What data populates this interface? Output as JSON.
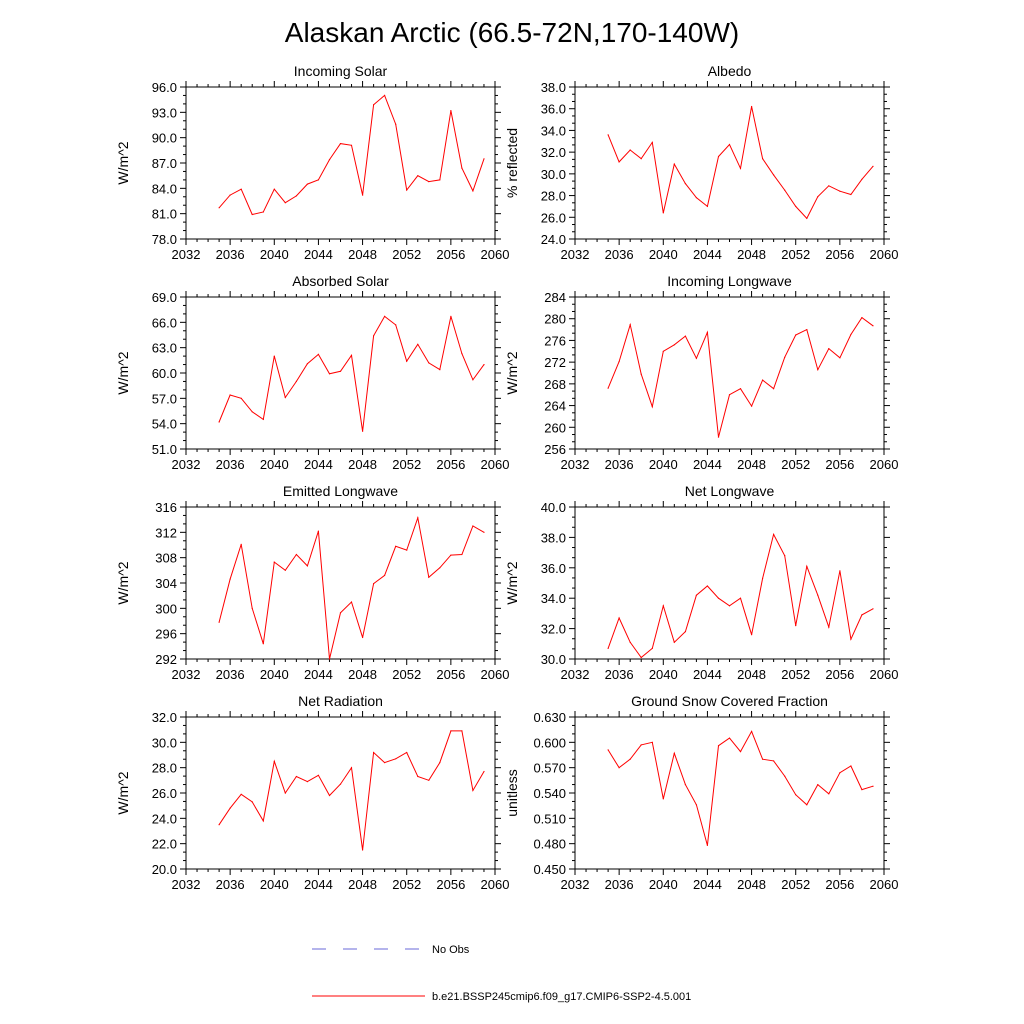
{
  "title": "Alaskan Arctic (66.5-72N,170-140W)",
  "legend": {
    "position": "bottom-center",
    "entries": [
      {
        "label": "No Obs",
        "color": "#6a6ad8",
        "style": "dashed"
      },
      {
        "label": "b.e21.BSSP245cmip6.f09_g17.CMIP6-SSP2-4.5.001",
        "color": "#ff0000",
        "style": "solid"
      }
    ]
  },
  "chart_data": [
    {
      "type": "line",
      "title": "Incoming Solar",
      "xlabel": "",
      "ylabel": "W/m^2",
      "xlim": [
        2032,
        2060
      ],
      "ylim": [
        78,
        96
      ],
      "xticks": [
        "2032",
        "2036",
        "2040",
        "2044",
        "2048",
        "2052",
        "2056",
        "2060"
      ],
      "yticks": [
        "78.0",
        "81.0",
        "84.0",
        "87.0",
        "90.0",
        "93.0",
        "96.0"
      ],
      "x": [
        2035,
        2036,
        2037,
        2038,
        2039,
        2040,
        2041,
        2042,
        2043,
        2044,
        2045,
        2046,
        2047,
        2048,
        2049,
        2050,
        2051,
        2052,
        2053,
        2054,
        2055,
        2056,
        2057,
        2058,
        2059
      ],
      "series": [
        {
          "color": "#ff0000",
          "values": [
            81.7,
            83.2,
            83.9,
            80.9,
            81.2,
            83.9,
            82.3,
            83.1,
            84.5,
            85.0,
            87.4,
            89.3,
            89.1,
            83.2,
            93.9,
            95.0,
            91.6,
            83.8,
            85.5,
            84.8,
            85.0,
            93.2,
            86.4,
            83.7,
            87.5
          ]
        }
      ]
    },
    {
      "type": "line",
      "title": "Albedo",
      "xlabel": "",
      "ylabel": "% reflected",
      "xlim": [
        2032,
        2060
      ],
      "ylim": [
        24,
        38
      ],
      "xticks": [
        "2032",
        "2036",
        "2040",
        "2044",
        "2048",
        "2052",
        "2056",
        "2060"
      ],
      "yticks": [
        "24.0",
        "26.0",
        "28.0",
        "30.0",
        "32.0",
        "34.0",
        "36.0",
        "38.0"
      ],
      "x": [
        2035,
        2036,
        2037,
        2038,
        2039,
        2040,
        2041,
        2042,
        2043,
        2044,
        2045,
        2046,
        2047,
        2048,
        2049,
        2050,
        2051,
        2052,
        2053,
        2054,
        2055,
        2056,
        2057,
        2058,
        2059
      ],
      "series": [
        {
          "color": "#ff0000",
          "values": [
            33.6,
            31.1,
            32.2,
            31.4,
            32.9,
            26.4,
            30.9,
            29.1,
            27.8,
            27.0,
            31.6,
            32.7,
            30.5,
            36.2,
            31.4,
            29.9,
            28.5,
            27.0,
            25.9,
            27.9,
            28.9,
            28.4,
            28.1,
            29.5,
            30.7
          ]
        }
      ]
    },
    {
      "type": "line",
      "title": "Absorbed Solar",
      "xlabel": "",
      "ylabel": "W/m^2",
      "xlim": [
        2032,
        2060
      ],
      "ylim": [
        51,
        69
      ],
      "xticks": [
        "2032",
        "2036",
        "2040",
        "2044",
        "2048",
        "2052",
        "2056",
        "2060"
      ],
      "yticks": [
        "51.0",
        "54.0",
        "57.0",
        "60.0",
        "63.0",
        "66.0",
        "69.0"
      ],
      "x": [
        2035,
        2036,
        2037,
        2038,
        2039,
        2040,
        2041,
        2042,
        2043,
        2044,
        2045,
        2046,
        2047,
        2048,
        2049,
        2050,
        2051,
        2052,
        2053,
        2054,
        2055,
        2056,
        2057,
        2058,
        2059
      ],
      "series": [
        {
          "color": "#ff0000",
          "values": [
            54.2,
            57.4,
            57.0,
            55.4,
            54.5,
            62.0,
            57.1,
            59.0,
            61.1,
            62.2,
            59.9,
            60.2,
            62.1,
            53.1,
            64.4,
            66.7,
            65.7,
            61.4,
            63.4,
            61.2,
            60.4,
            66.7,
            62.3,
            59.2,
            61.0
          ]
        }
      ]
    },
    {
      "type": "line",
      "title": "Incoming Longwave",
      "xlabel": "",
      "ylabel": "W/m^2",
      "xlim": [
        2032,
        2060
      ],
      "ylim": [
        256,
        284
      ],
      "xticks": [
        "2032",
        "2036",
        "2040",
        "2044",
        "2048",
        "2052",
        "2056",
        "2060"
      ],
      "yticks": [
        "256",
        "260",
        "264",
        "268",
        "272",
        "276",
        "280",
        "284"
      ],
      "x": [
        2035,
        2036,
        2037,
        2038,
        2039,
        2040,
        2041,
        2042,
        2043,
        2044,
        2045,
        2046,
        2047,
        2048,
        2049,
        2050,
        2051,
        2052,
        2053,
        2054,
        2055,
        2056,
        2057,
        2058,
        2059
      ],
      "series": [
        {
          "color": "#ff0000",
          "values": [
            267.2,
            272.1,
            278.9,
            269.8,
            263.8,
            274.0,
            275.2,
            276.8,
            272.7,
            277.5,
            258.2,
            266.0,
            267.1,
            263.9,
            268.7,
            267.1,
            272.9,
            277.0,
            278.0,
            270.6,
            274.5,
            272.8,
            277.1,
            280.2,
            278.7
          ]
        }
      ]
    },
    {
      "type": "line",
      "title": "Emitted Longwave",
      "xlabel": "",
      "ylabel": "W/m^2",
      "xlim": [
        2032,
        2060
      ],
      "ylim": [
        292,
        316
      ],
      "xticks": [
        "2032",
        "2036",
        "2040",
        "2044",
        "2048",
        "2052",
        "2056",
        "2060"
      ],
      "yticks": [
        "292",
        "296",
        "300",
        "304",
        "308",
        "312",
        "316"
      ],
      "x": [
        2035,
        2036,
        2037,
        2038,
        2039,
        2040,
        2041,
        2042,
        2043,
        2044,
        2045,
        2046,
        2047,
        2048,
        2049,
        2050,
        2051,
        2052,
        2053,
        2054,
        2055,
        2056,
        2057,
        2058,
        2059
      ],
      "series": [
        {
          "color": "#ff0000",
          "values": [
            297.8,
            304.6,
            310.1,
            300.0,
            294.4,
            307.3,
            306.0,
            308.5,
            306.7,
            312.2,
            292.0,
            299.3,
            301.0,
            295.4,
            303.9,
            305.2,
            309.8,
            309.2,
            314.3,
            304.9,
            306.4,
            308.4,
            308.5,
            313.0,
            312.0
          ]
        }
      ]
    },
    {
      "type": "line",
      "title": "Net Longwave",
      "xlabel": "",
      "ylabel": "W/m^2",
      "xlim": [
        2032,
        2060
      ],
      "ylim": [
        30,
        40
      ],
      "xticks": [
        "2032",
        "2036",
        "2040",
        "2044",
        "2048",
        "2052",
        "2056",
        "2060"
      ],
      "yticks": [
        "30.0",
        "32.0",
        "34.0",
        "36.0",
        "38.0",
        "40.0"
      ],
      "x": [
        2035,
        2036,
        2037,
        2038,
        2039,
        2040,
        2041,
        2042,
        2043,
        2044,
        2045,
        2046,
        2047,
        2048,
        2049,
        2050,
        2051,
        2052,
        2053,
        2054,
        2055,
        2056,
        2057,
        2058,
        2059
      ],
      "series": [
        {
          "color": "#ff0000",
          "values": [
            30.7,
            32.7,
            31.1,
            30.1,
            30.7,
            33.5,
            31.1,
            31.8,
            34.2,
            34.8,
            34.0,
            33.5,
            34.0,
            31.6,
            35.3,
            38.2,
            36.8,
            32.2,
            36.1,
            34.2,
            32.1,
            35.8,
            31.3,
            32.9,
            33.3
          ]
        }
      ]
    },
    {
      "type": "line",
      "title": "Net Radiation",
      "xlabel": "",
      "ylabel": "W/m^2",
      "xlim": [
        2032,
        2060
      ],
      "ylim": [
        20,
        32
      ],
      "xticks": [
        "2032",
        "2036",
        "2040",
        "2044",
        "2048",
        "2052",
        "2056",
        "2060"
      ],
      "yticks": [
        "20.0",
        "22.0",
        "24.0",
        "26.0",
        "28.0",
        "30.0",
        "32.0"
      ],
      "x": [
        2035,
        2036,
        2037,
        2038,
        2039,
        2040,
        2041,
        2042,
        2043,
        2044,
        2045,
        2046,
        2047,
        2048,
        2049,
        2050,
        2051,
        2052,
        2053,
        2054,
        2055,
        2056,
        2057,
        2058,
        2059
      ],
      "series": [
        {
          "color": "#ff0000",
          "values": [
            23.5,
            24.8,
            25.9,
            25.3,
            23.8,
            28.5,
            26.0,
            27.3,
            26.9,
            27.4,
            25.8,
            26.7,
            28.0,
            21.5,
            29.2,
            28.4,
            28.7,
            29.2,
            27.3,
            27.0,
            28.4,
            30.9,
            30.9,
            26.2,
            27.7
          ]
        }
      ]
    },
    {
      "type": "line",
      "title": "Ground Snow Covered Fraction",
      "xlabel": "",
      "ylabel": "unitless",
      "xlim": [
        2032,
        2060
      ],
      "ylim": [
        0.45,
        0.63
      ],
      "xticks": [
        "2032",
        "2036",
        "2040",
        "2044",
        "2048",
        "2052",
        "2056",
        "2060"
      ],
      "yticks": [
        "0.450",
        "0.480",
        "0.510",
        "0.540",
        "0.570",
        "0.600",
        "0.630"
      ],
      "x": [
        2035,
        2036,
        2037,
        2038,
        2039,
        2040,
        2041,
        2042,
        2043,
        2044,
        2045,
        2046,
        2047,
        2048,
        2049,
        2050,
        2051,
        2052,
        2053,
        2054,
        2055,
        2056,
        2057,
        2058,
        2059
      ],
      "series": [
        {
          "color": "#ff0000",
          "values": [
            0.591,
            0.57,
            0.58,
            0.597,
            0.6,
            0.533,
            0.587,
            0.55,
            0.526,
            0.478,
            0.596,
            0.605,
            0.589,
            0.613,
            0.58,
            0.578,
            0.56,
            0.538,
            0.526,
            0.55,
            0.539,
            0.564,
            0.572,
            0.544,
            0.548
          ]
        }
      ]
    }
  ]
}
